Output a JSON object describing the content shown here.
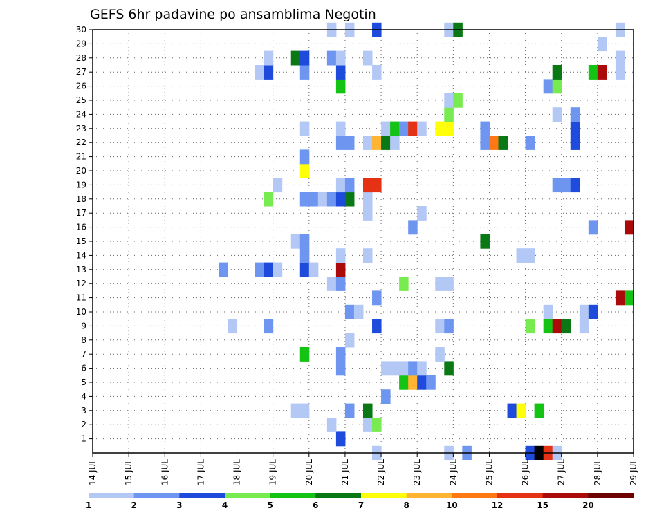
{
  "chart_data": {
    "type": "heatmap",
    "title": "GEFS 6hr padavine po ansamblima Negotin",
    "x_tick_labels": [
      "14 JUL",
      "15 JUL",
      "16 JUL",
      "17 JUL",
      "18 JUL",
      "19 JUL",
      "20 JUL",
      "21 JUL",
      "22 JUL",
      "23 JUL",
      "24 JUL",
      "25 JUL",
      "26 JUL",
      "27 JUL",
      "28 JUL",
      "29 JUL"
    ],
    "y_tick_labels": [
      "1",
      "2",
      "3",
      "4",
      "5",
      "6",
      "7",
      "8",
      "9",
      "10",
      "11",
      "12",
      "13",
      "14",
      "15",
      "16",
      "17",
      "18",
      "19",
      "20",
      "21",
      "22",
      "23",
      "24",
      "25",
      "26",
      "27",
      "28",
      "29",
      "30"
    ],
    "xlim_days": [
      14,
      29
    ],
    "ylim": [
      0,
      30
    ],
    "time_step_hours": 6,
    "grid": "dotted",
    "legend": {
      "placement": "bottom",
      "levels": [
        "1",
        "2",
        "3",
        "4",
        "5",
        "6",
        "7",
        "8",
        "10",
        "12",
        "15",
        "20"
      ],
      "colors": [
        "#b4c8f5",
        "#6e96f0",
        "#1e4bdc",
        "#78eb50",
        "#14c314",
        "#0a7814",
        "#ffff0a",
        "#ffb432",
        "#ff7814",
        "#e63214",
        "#aa0a0a",
        "#6e0000"
      ]
    },
    "cells": [
      [
        0,
        21.75,
        1
      ],
      [
        0,
        23.75,
        1
      ],
      [
        0,
        24.25,
        2
      ],
      [
        0,
        26.0,
        3
      ],
      [
        0,
        26.25,
        13
      ],
      [
        0,
        26.5,
        10
      ],
      [
        0,
        26.75,
        1
      ],
      [
        1,
        20.75,
        3
      ],
      [
        2,
        20.5,
        1
      ],
      [
        2,
        21.5,
        1
      ],
      [
        2,
        21.75,
        4
      ],
      [
        3,
        19.5,
        1
      ],
      [
        3,
        19.75,
        1
      ],
      [
        3,
        21.0,
        2
      ],
      [
        3,
        21.5,
        6
      ],
      [
        3,
        25.5,
        3
      ],
      [
        3,
        25.75,
        7
      ],
      [
        3,
        26.25,
        5
      ],
      [
        4,
        22.0,
        2
      ],
      [
        5,
        22.5,
        5
      ],
      [
        5,
        22.75,
        8
      ],
      [
        5,
        23.0,
        3
      ],
      [
        5,
        23.25,
        2
      ],
      [
        6,
        20.75,
        2
      ],
      [
        6,
        22.0,
        1
      ],
      [
        6,
        22.25,
        1
      ],
      [
        6,
        22.5,
        1
      ],
      [
        6,
        22.75,
        2
      ],
      [
        6,
        23.0,
        1
      ],
      [
        6,
        23.75,
        6
      ],
      [
        7,
        19.75,
        5
      ],
      [
        7,
        20.75,
        2
      ],
      [
        7,
        23.5,
        1
      ],
      [
        8,
        21.0,
        1
      ],
      [
        9,
        17.75,
        1
      ],
      [
        9,
        18.75,
        2
      ],
      [
        9,
        21.75,
        3
      ],
      [
        9,
        23.5,
        1
      ],
      [
        9,
        23.75,
        2
      ],
      [
        9,
        26.0,
        4
      ],
      [
        9,
        26.5,
        5
      ],
      [
        9,
        26.75,
        11
      ],
      [
        9,
        27.0,
        6
      ],
      [
        9,
        27.5,
        1
      ],
      [
        10,
        21.0,
        2
      ],
      [
        10,
        21.25,
        1
      ],
      [
        10,
        26.5,
        1
      ],
      [
        10,
        27.5,
        1
      ],
      [
        10,
        27.75,
        3
      ],
      [
        11,
        21.75,
        2
      ],
      [
        11,
        28.5,
        11
      ],
      [
        11,
        28.75,
        5
      ],
      [
        12,
        20.5,
        1
      ],
      [
        12,
        20.75,
        2
      ],
      [
        12,
        22.5,
        4
      ],
      [
        12,
        23.5,
        1
      ],
      [
        12,
        23.75,
        1
      ],
      [
        13,
        17.5,
        2
      ],
      [
        13,
        18.5,
        2
      ],
      [
        13,
        18.75,
        3
      ],
      [
        13,
        19.0,
        1
      ],
      [
        13,
        19.75,
        3
      ],
      [
        13,
        20.0,
        1
      ],
      [
        13,
        20.75,
        11
      ],
      [
        14,
        19.75,
        2
      ],
      [
        14,
        20.75,
        1
      ],
      [
        14,
        21.5,
        1
      ],
      [
        14,
        25.75,
        1
      ],
      [
        14,
        26.0,
        1
      ],
      [
        15,
        19.5,
        1
      ],
      [
        15,
        19.75,
        2
      ],
      [
        15,
        24.75,
        6
      ],
      [
        16,
        22.75,
        2
      ],
      [
        16,
        27.75,
        2
      ],
      [
        16,
        28.75,
        11
      ],
      [
        17,
        21.5,
        1
      ],
      [
        17,
        23.0,
        1
      ],
      [
        18,
        18.75,
        4
      ],
      [
        18,
        19.75,
        2
      ],
      [
        18,
        20.0,
        2
      ],
      [
        18,
        20.25,
        1
      ],
      [
        18,
        20.5,
        2
      ],
      [
        18,
        20.75,
        3
      ],
      [
        18,
        21.0,
        6
      ],
      [
        18,
        21.5,
        1
      ],
      [
        19,
        19.0,
        1
      ],
      [
        19,
        20.75,
        1
      ],
      [
        19,
        21.0,
        2
      ],
      [
        19,
        21.5,
        10
      ],
      [
        19,
        21.75,
        10
      ],
      [
        19,
        26.75,
        2
      ],
      [
        19,
        27.0,
        2
      ],
      [
        19,
        27.25,
        3
      ],
      [
        20,
        19.75,
        7
      ],
      [
        21,
        19.75,
        2
      ],
      [
        22,
        20.75,
        2
      ],
      [
        22,
        21.0,
        2
      ],
      [
        22,
        21.5,
        1
      ],
      [
        22,
        21.75,
        8
      ],
      [
        22,
        22.0,
        6
      ],
      [
        22,
        22.25,
        1
      ],
      [
        22,
        24.75,
        2
      ],
      [
        22,
        25.0,
        9
      ],
      [
        22,
        25.25,
        6
      ],
      [
        22,
        26.0,
        2
      ],
      [
        22,
        27.25,
        3
      ],
      [
        23,
        19.75,
        1
      ],
      [
        23,
        20.75,
        1
      ],
      [
        23,
        22.0,
        1
      ],
      [
        23,
        22.25,
        5
      ],
      [
        23,
        22.5,
        2
      ],
      [
        23,
        22.75,
        10
      ],
      [
        23,
        23.0,
        1
      ],
      [
        23,
        23.5,
        7
      ],
      [
        23,
        23.75,
        7
      ],
      [
        23,
        24.75,
        2
      ],
      [
        23,
        27.25,
        3
      ],
      [
        24,
        23.75,
        4
      ],
      [
        24,
        26.75,
        1
      ],
      [
        24,
        27.25,
        2
      ],
      [
        25,
        23.75,
        1
      ],
      [
        25,
        24.0,
        4
      ],
      [
        26,
        20.75,
        5
      ],
      [
        26,
        26.5,
        2
      ],
      [
        26,
        26.75,
        4
      ],
      [
        27,
        18.5,
        1
      ],
      [
        27,
        18.75,
        3
      ],
      [
        27,
        19.75,
        2
      ],
      [
        27,
        20.75,
        3
      ],
      [
        27,
        21.75,
        1
      ],
      [
        27,
        26.75,
        6
      ],
      [
        27,
        27.75,
        5
      ],
      [
        27,
        28.0,
        11
      ],
      [
        27,
        28.5,
        1
      ],
      [
        28,
        18.75,
        1
      ],
      [
        28,
        19.5,
        6
      ],
      [
        28,
        19.75,
        3
      ],
      [
        28,
        20.5,
        2
      ],
      [
        28,
        20.75,
        1
      ],
      [
        28,
        21.5,
        1
      ],
      [
        28,
        28.5,
        1
      ],
      [
        29,
        28.0,
        1
      ],
      [
        30,
        20.5,
        1
      ],
      [
        30,
        21.0,
        1
      ],
      [
        30,
        21.75,
        3
      ],
      [
        30,
        23.75,
        1
      ],
      [
        30,
        24.0,
        6
      ],
      [
        30,
        28.5,
        1
      ]
    ]
  }
}
